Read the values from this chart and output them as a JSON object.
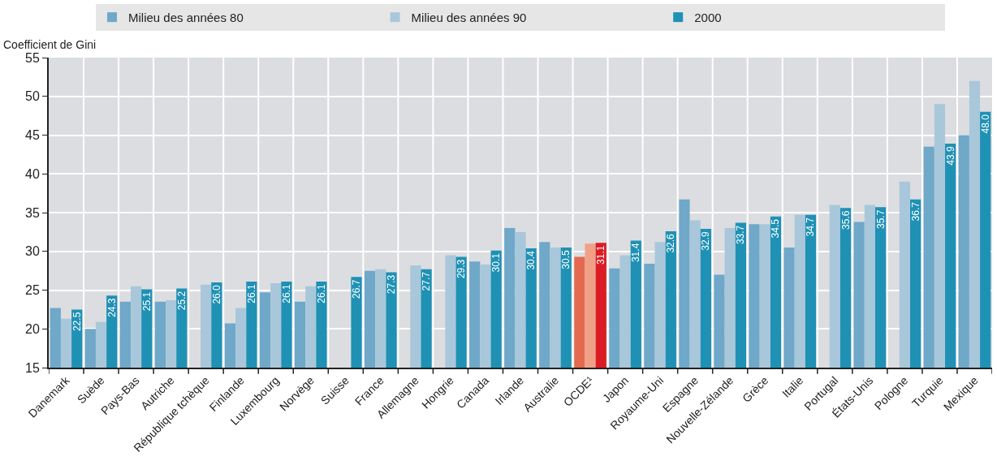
{
  "chart_data": {
    "type": "bar",
    "ylabel": "Coefficient de Gini",
    "categories": [
      "Danemark",
      "Suède",
      "Pays-Bas",
      "Autriche",
      "République tchèque",
      "Finlande",
      "Luxembourg",
      "Norvège",
      "Suisse",
      "France",
      "Allemagne",
      "Hongrie",
      "Canada",
      "Irlande",
      "Australie",
      "OCDE¹",
      "Japon",
      "Royaume-Uni",
      "Espagne",
      "Nouvelle-Zélande",
      "Grèce",
      "Italie",
      "Portugal",
      "États-Unis",
      "Pologne",
      "Turquie",
      "Mexique"
    ],
    "series": [
      {
        "name": "Milieu des années 80",
        "colors": [
          "#6fa8c8",
          "#6fa8c8",
          "#6fa8c8",
          "#6fa8c8",
          "#6fa8c8",
          "#6fa8c8",
          "#6fa8c8",
          "#6fa8c8",
          "#6fa8c8",
          "#6fa8c8",
          "#6fa8c8",
          "#6fa8c8",
          "#6fa8c8",
          "#6fa8c8",
          "#6fa8c8",
          "#e5694f",
          "#6fa8c8",
          "#6fa8c8",
          "#6fa8c8",
          "#6fa8c8",
          "#6fa8c8",
          "#6fa8c8",
          "#6fa8c8",
          "#6fa8c8",
          "#6fa8c8",
          "#6fa8c8",
          "#6fa8c8"
        ],
        "values": [
          22.7,
          20.0,
          23.5,
          23.5,
          null,
          20.7,
          24.7,
          23.5,
          null,
          27.5,
          null,
          null,
          28.7,
          33.0,
          31.2,
          29.3,
          27.8,
          28.4,
          36.7,
          27.0,
          33.5,
          30.5,
          null,
          33.8,
          null,
          43.5,
          45.0
        ]
      },
      {
        "name": "Milieu des années 90",
        "colors": [
          "#a9c7da",
          "#a9c7da",
          "#a9c7da",
          "#a9c7da",
          "#a9c7da",
          "#a9c7da",
          "#a9c7da",
          "#a9c7da",
          "#a9c7da",
          "#a9c7da",
          "#a9c7da",
          "#a9c7da",
          "#a9c7da",
          "#a9c7da",
          "#a9c7da",
          "#f0a087",
          "#a9c7da",
          "#a9c7da",
          "#a9c7da",
          "#a9c7da",
          "#a9c7da",
          "#a9c7da",
          "#a9c7da",
          "#a9c7da",
          "#a9c7da",
          "#a9c7da",
          "#a9c7da"
        ],
        "values": [
          21.3,
          20.9,
          25.5,
          23.7,
          25.7,
          22.7,
          25.9,
          25.5,
          null,
          27.7,
          28.2,
          29.5,
          28.3,
          32.5,
          30.5,
          31.0,
          29.5,
          31.2,
          34.0,
          33.0,
          33.5,
          34.7,
          36.0,
          36.0,
          39.0,
          49.0,
          52.0
        ]
      },
      {
        "name": "2000",
        "colors": [
          "#1f91b5",
          "#1f91b5",
          "#1f91b5",
          "#1f91b5",
          "#1f91b5",
          "#1f91b5",
          "#1f91b5",
          "#1f91b5",
          "#1f91b5",
          "#1f91b5",
          "#1f91b5",
          "#1f91b5",
          "#1f91b5",
          "#1f91b5",
          "#1f91b5",
          "#dc1c24",
          "#1f91b5",
          "#1f91b5",
          "#1f91b5",
          "#1f91b5",
          "#1f91b5",
          "#1f91b5",
          "#1f91b5",
          "#1f91b5",
          "#1f91b5",
          "#1f91b5",
          "#1f91b5"
        ],
        "values": [
          22.5,
          24.3,
          25.1,
          25.2,
          26.0,
          26.1,
          26.1,
          26.1,
          26.7,
          27.3,
          27.7,
          29.3,
          30.1,
          30.4,
          30.5,
          31.1,
          31.4,
          32.6,
          32.9,
          33.7,
          34.5,
          34.7,
          35.6,
          35.7,
          36.7,
          43.9,
          48.0
        ],
        "value_labels": [
          "22.5",
          "24.3",
          "25.1",
          "25.2",
          "26.0",
          "26.1",
          "26.1",
          "26.1",
          "26.7",
          "27.3",
          "27.7",
          "29.3",
          "30.1",
          "30.4",
          "30.5",
          "31.1",
          "31.4",
          "32.6",
          "32.9",
          "33.7",
          "34.5",
          "34.7",
          "35.6",
          "35.7",
          "36.7",
          "43.9",
          "48.0"
        ]
      }
    ],
    "ylim": [
      15,
      55
    ],
    "yticks": [
      15,
      20,
      25,
      30,
      35,
      40,
      45,
      50,
      55
    ],
    "grid": true,
    "legend": "top"
  }
}
